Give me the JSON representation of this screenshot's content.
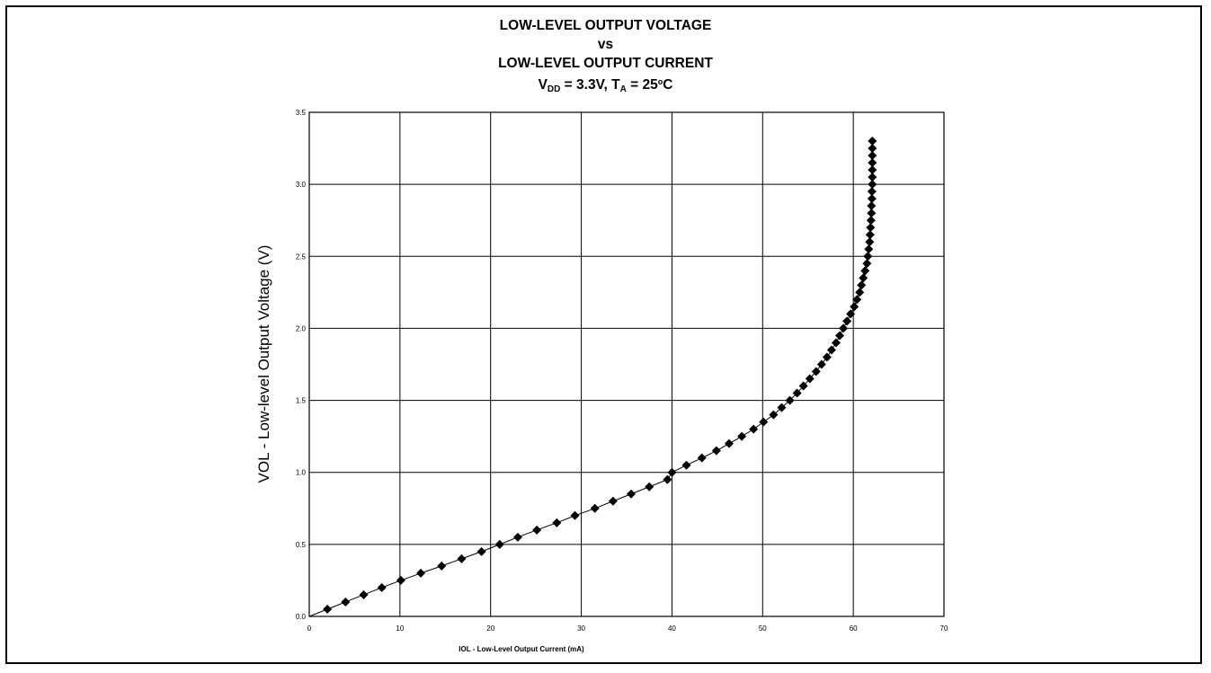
{
  "chart_data": {
    "type": "scatter",
    "title_lines": [
      "LOW-LEVEL OUTPUT VOLTAGE",
      "vs",
      "LOW-LEVEL OUTPUT CURRENT"
    ],
    "conditions": {
      "vdd_symbol": "V",
      "vdd_subscript": "DD",
      "vdd_value": " = 3.3V, ",
      "ta_symbol": "T",
      "ta_subscript": "A",
      "ta_value": " = 25",
      "degree": "o",
      "ta_unit": "C"
    },
    "xlabel": "IOL - Low-Level Output Current (mA)",
    "ylabel": "VOL - Low-level Output Voltage (V)",
    "xlim": [
      0,
      70
    ],
    "ylim": [
      0,
      3.5
    ],
    "x_ticks": [
      "0",
      "10",
      "20",
      "30",
      "40",
      "50",
      "60",
      "70"
    ],
    "y_ticks": [
      "0.0",
      "0.5",
      "1.0",
      "1.5",
      "2.0",
      "2.5",
      "3.0",
      "3.5"
    ],
    "grid": true,
    "marker": "diamond",
    "marker_color": "#000000",
    "series": [
      {
        "points": [
          [
            0,
            0.0
          ],
          [
            2.0,
            0.05
          ],
          [
            4.0,
            0.1
          ],
          [
            6.0,
            0.15
          ],
          [
            8.0,
            0.2
          ],
          [
            10.1,
            0.25
          ],
          [
            12.3,
            0.3
          ],
          [
            14.6,
            0.35
          ],
          [
            16.8,
            0.4
          ],
          [
            19.0,
            0.45
          ],
          [
            21.0,
            0.5
          ],
          [
            23.0,
            0.55
          ],
          [
            25.1,
            0.6
          ],
          [
            27.3,
            0.65
          ],
          [
            29.3,
            0.7
          ],
          [
            31.5,
            0.75
          ],
          [
            33.5,
            0.8
          ],
          [
            35.5,
            0.85
          ],
          [
            37.5,
            0.9
          ],
          [
            39.5,
            0.95
          ],
          [
            40.0,
            1.0
          ],
          [
            41.6,
            1.05
          ],
          [
            43.3,
            1.1
          ],
          [
            44.9,
            1.15
          ],
          [
            46.3,
            1.2
          ],
          [
            47.7,
            1.25
          ],
          [
            49.0,
            1.3
          ],
          [
            50.1,
            1.35
          ],
          [
            51.2,
            1.4
          ],
          [
            52.1,
            1.45
          ],
          [
            53.0,
            1.5
          ],
          [
            53.8,
            1.55
          ],
          [
            54.5,
            1.6
          ],
          [
            55.2,
            1.65
          ],
          [
            55.9,
            1.7
          ],
          [
            56.5,
            1.75
          ],
          [
            57.1,
            1.8
          ],
          [
            57.6,
            1.85
          ],
          [
            58.1,
            1.9
          ],
          [
            58.5,
            1.95
          ],
          [
            58.9,
            2.0
          ],
          [
            59.3,
            2.05
          ],
          [
            59.7,
            2.1
          ],
          [
            60.1,
            2.15
          ],
          [
            60.4,
            2.2
          ],
          [
            60.7,
            2.25
          ],
          [
            60.9,
            2.3
          ],
          [
            61.1,
            2.35
          ],
          [
            61.3,
            2.4
          ],
          [
            61.5,
            2.45
          ],
          [
            61.6,
            2.5
          ],
          [
            61.7,
            2.55
          ],
          [
            61.8,
            2.6
          ],
          [
            61.85,
            2.65
          ],
          [
            61.9,
            2.7
          ],
          [
            61.95,
            2.75
          ],
          [
            62.0,
            2.8
          ],
          [
            62.0,
            2.85
          ],
          [
            62.05,
            2.9
          ],
          [
            62.05,
            2.95
          ],
          [
            62.1,
            3.0
          ],
          [
            62.1,
            3.05
          ],
          [
            62.1,
            3.1
          ],
          [
            62.1,
            3.15
          ],
          [
            62.1,
            3.2
          ],
          [
            62.1,
            3.25
          ],
          [
            62.1,
            3.3
          ]
        ]
      }
    ]
  }
}
